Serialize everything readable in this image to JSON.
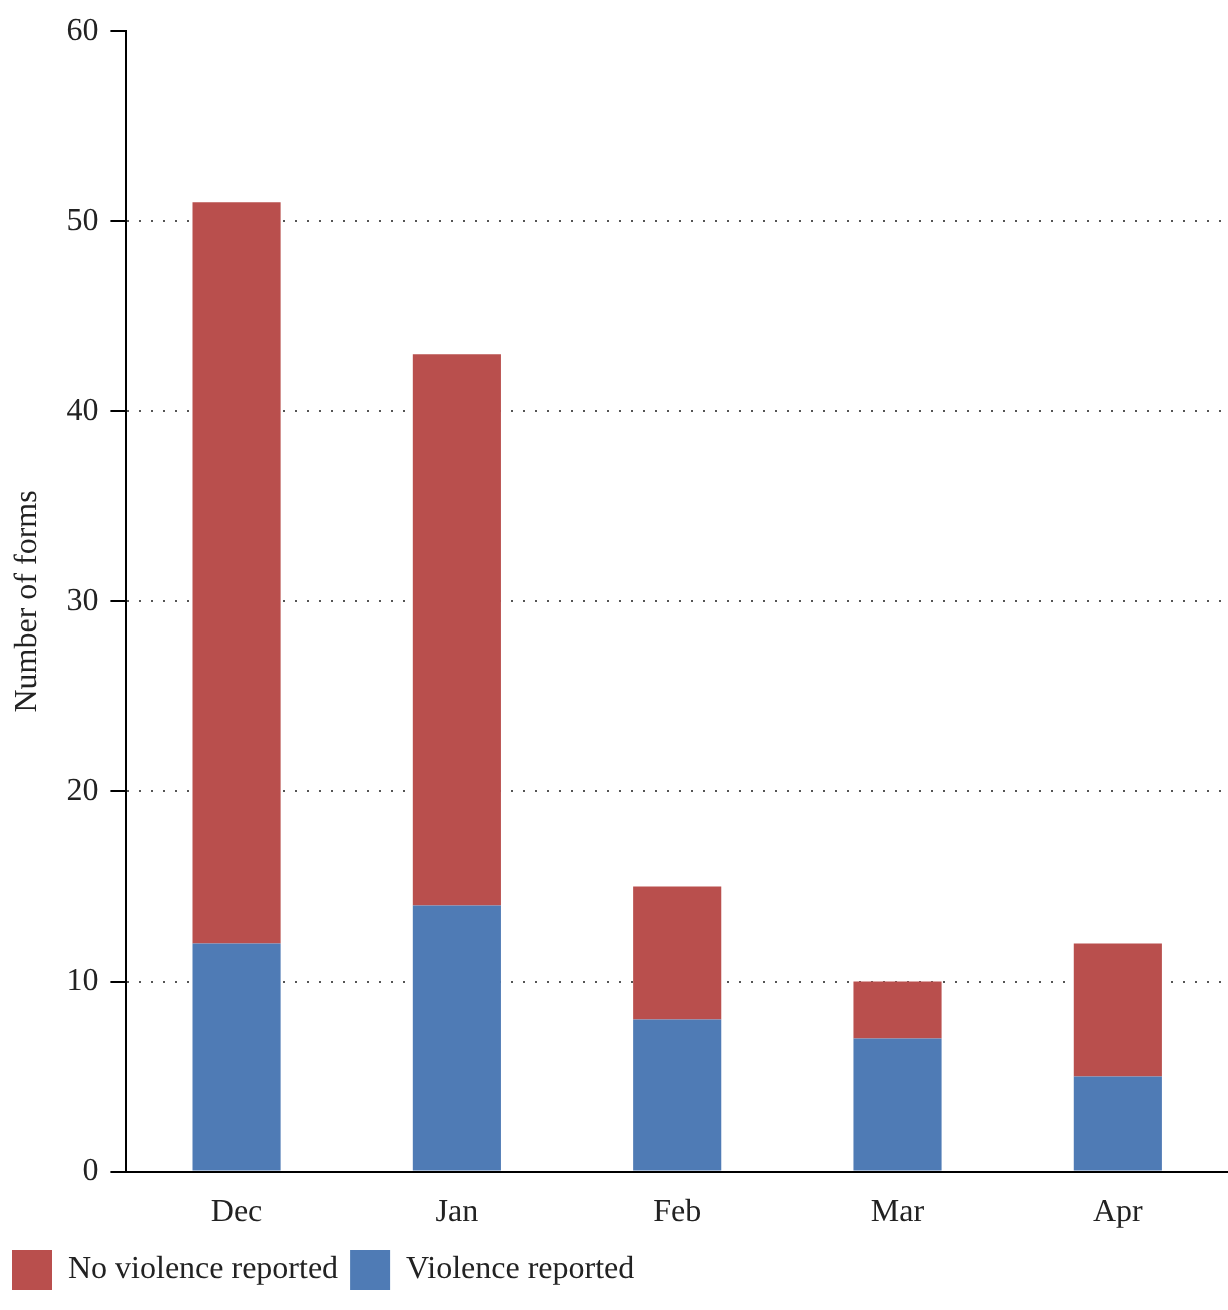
{
  "chart_data": {
    "type": "bar",
    "ylabel": "Number of forms",
    "categories": [
      "Dec",
      "Jan",
      "Feb",
      "Mar",
      "Apr"
    ],
    "stacked": true,
    "series": [
      {
        "name": "Violence reported",
        "color": "#4f7bb5",
        "values": [
          12,
          14,
          8,
          7,
          5
        ]
      },
      {
        "name": "No violence reported",
        "color": "#b94f4d",
        "values": [
          39,
          29,
          7,
          3,
          7
        ]
      }
    ],
    "ylim": [
      0,
      60
    ],
    "yticks": [
      0,
      10,
      20,
      30,
      40,
      50,
      60
    ],
    "grid": "y",
    "legend": "bottom left"
  }
}
